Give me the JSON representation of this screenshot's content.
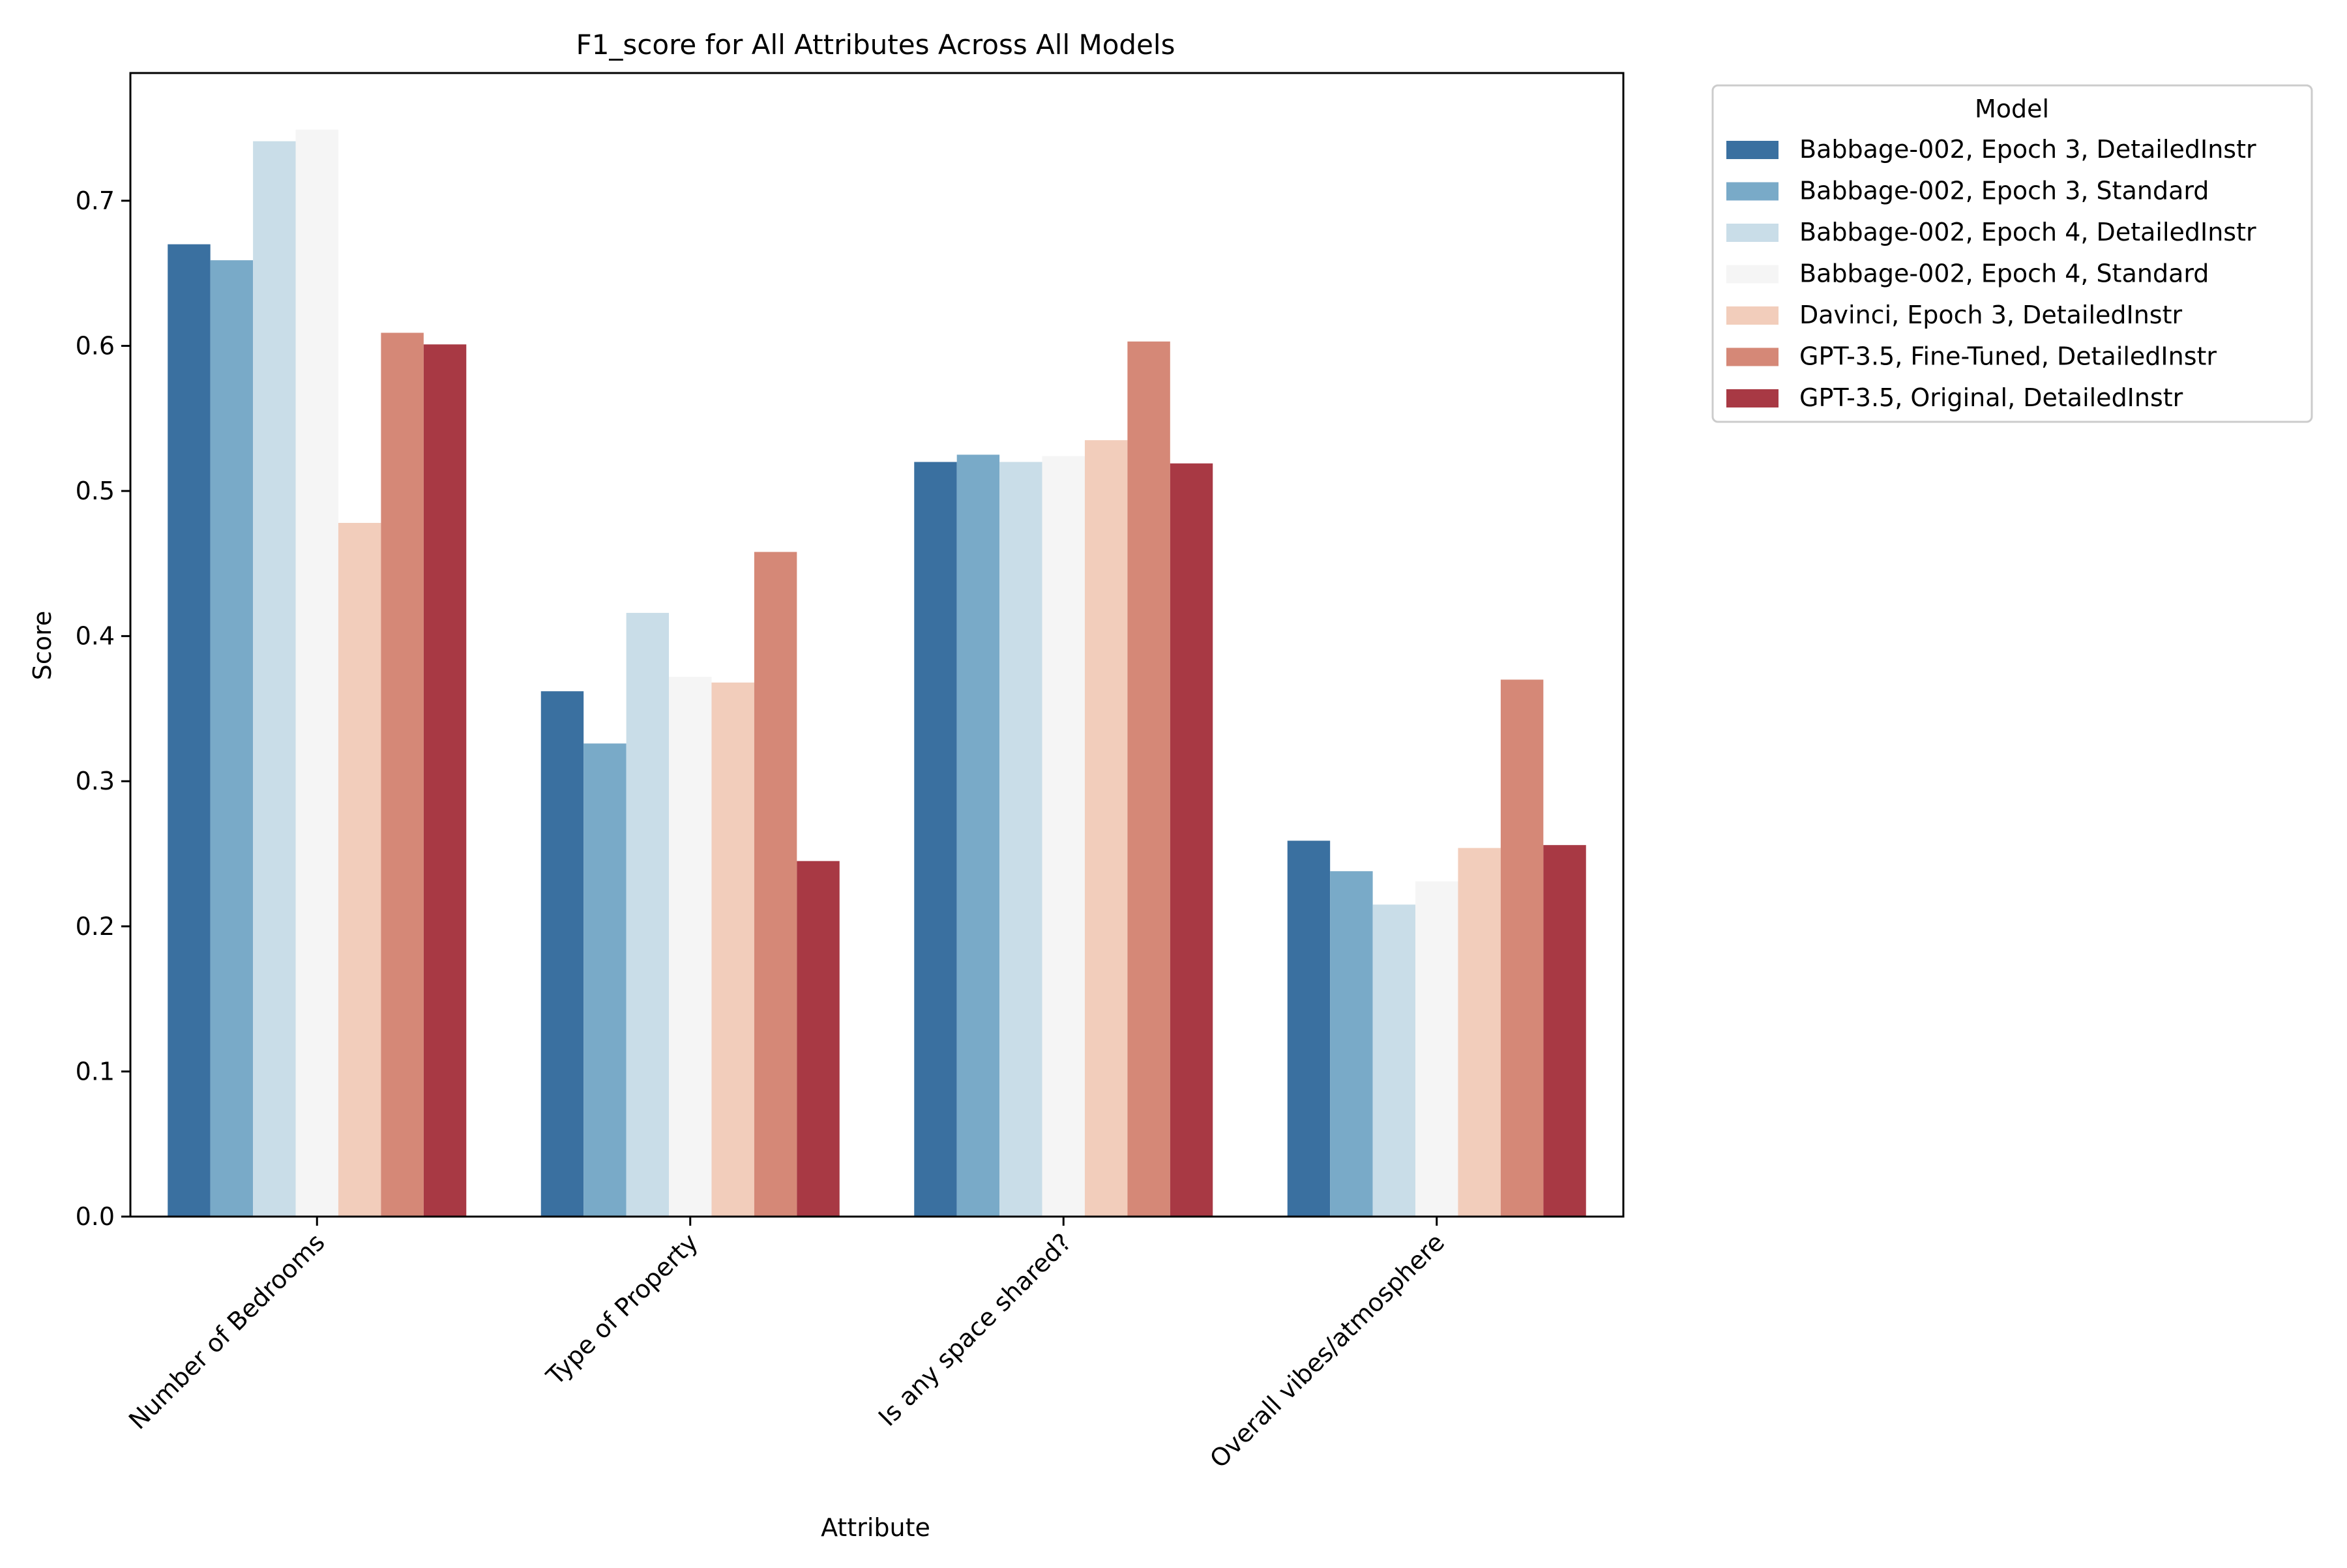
{
  "chart_data": {
    "type": "bar",
    "title": "F1_score for All Attributes Across All Models",
    "xlabel": "Attribute",
    "ylabel": "Score",
    "ylim": [
      0,
      0.788
    ],
    "yticks": [
      0.0,
      0.1,
      0.2,
      0.3,
      0.4,
      0.5,
      0.6,
      0.7
    ],
    "ytick_labels": [
      "0.0",
      "0.1",
      "0.2",
      "0.3",
      "0.4",
      "0.5",
      "0.6",
      "0.7"
    ],
    "grid": false,
    "legend_placement": "outside-top-right",
    "legend_title": "Model",
    "categories": [
      "Number of Bedrooms",
      "Type of Property",
      "Is any space shared?",
      "Overall vibes/atmosphere"
    ],
    "series": [
      {
        "name": "Babbage-002, Epoch 3, DetailedInstr",
        "color": "#3a70a0",
        "values": [
          0.67,
          0.362,
          0.52,
          0.259
        ]
      },
      {
        "name": "Babbage-002, Epoch 3, Standard",
        "color": "#79aac8",
        "values": [
          0.659,
          0.326,
          0.525,
          0.238
        ]
      },
      {
        "name": "Babbage-002, Epoch 4, DetailedInstr",
        "color": "#c9dde8",
        "values": [
          0.741,
          0.416,
          0.52,
          0.215
        ]
      },
      {
        "name": "Babbage-002, Epoch 4, Standard",
        "color": "#f5f5f5",
        "values": [
          0.749,
          0.372,
          0.524,
          0.231
        ]
      },
      {
        "name": "Davinci, Epoch 3, DetailedInstr",
        "color": "#f2cdbb",
        "values": [
          0.478,
          0.368,
          0.535,
          0.254
        ]
      },
      {
        "name": "GPT-3.5, Fine-Tuned, DetailedInstr",
        "color": "#d58877",
        "values": [
          0.609,
          0.458,
          0.603,
          0.37
        ]
      },
      {
        "name": "GPT-3.5, Original, DetailedInstr",
        "color": "#a83944",
        "values": [
          0.601,
          0.245,
          0.519,
          0.256
        ]
      }
    ]
  }
}
